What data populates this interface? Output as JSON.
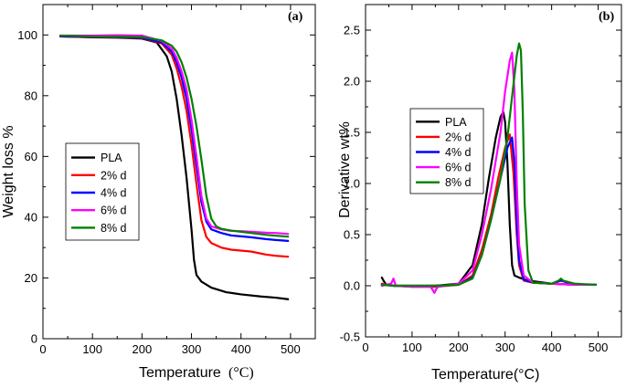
{
  "chart_data": [
    {
      "type": "line",
      "panel_label": "(a)",
      "title": "",
      "xlabel": "Temperature",
      "xlabel_unit": "(°C)",
      "ylabel": "Weight loss %",
      "xlim": [
        0,
        550
      ],
      "ylim": [
        0,
        110
      ],
      "xticks": [
        0,
        100,
        200,
        300,
        400,
        500
      ],
      "yticks": [
        0,
        20,
        40,
        60,
        80,
        100
      ],
      "grid": false,
      "legend_position": "center-left",
      "series": [
        {
          "name": "PLA",
          "color": "#000000",
          "x": [
            35,
            100,
            150,
            200,
            230,
            250,
            260,
            270,
            280,
            290,
            300,
            305,
            310,
            320,
            340,
            370,
            400,
            440,
            470,
            495
          ],
          "y": [
            99.5,
            99.2,
            99.1,
            98.8,
            97.5,
            93,
            88,
            79,
            67,
            53,
            36,
            26,
            21,
            18.8,
            16.8,
            15.3,
            14.6,
            13.9,
            13.5,
            13
          ]
        },
        {
          "name": "2% d",
          "color": "#ff0000",
          "x": [
            35,
            100,
            150,
            200,
            240,
            260,
            270,
            280,
            290,
            300,
            310,
            320,
            330,
            340,
            360,
            380,
            400,
            420,
            450,
            470,
            495
          ],
          "y": [
            99.5,
            99.3,
            99.2,
            99,
            97.2,
            93.5,
            89,
            83,
            75,
            64,
            51,
            39,
            33.5,
            31.5,
            30,
            29.3,
            29,
            28.7,
            27.7,
            27.3,
            27
          ]
        },
        {
          "name": "4% d",
          "color": "#0000ff",
          "x": [
            35,
            100,
            150,
            200,
            240,
            260,
            270,
            280,
            290,
            300,
            310,
            320,
            330,
            340,
            360,
            380,
            400,
            420,
            450,
            470,
            495
          ],
          "y": [
            99.6,
            99.4,
            99.3,
            99.1,
            97.5,
            94.5,
            91,
            86,
            79,
            69,
            57,
            45,
            38.5,
            36,
            34.8,
            34,
            33.7,
            33.4,
            32.8,
            32.5,
            32.2
          ]
        },
        {
          "name": "6% d",
          "color": "#ff00ff",
          "x": [
            35,
            100,
            150,
            200,
            240,
            260,
            270,
            280,
            290,
            300,
            310,
            320,
            330,
            340,
            360,
            380,
            400,
            420,
            450,
            470,
            495
          ],
          "y": [
            99.8,
            99.8,
            99.9,
            99.8,
            98,
            95.5,
            92.5,
            88,
            82,
            72,
            60,
            47,
            39.5,
            37,
            36,
            35.5,
            35.4,
            35.2,
            34.9,
            34.8,
            34.5
          ]
        },
        {
          "name": "8% d",
          "color": "#008000",
          "x": [
            35,
            100,
            150,
            200,
            240,
            260,
            270,
            280,
            290,
            300,
            310,
            320,
            330,
            340,
            350,
            360,
            380,
            400,
            420,
            450,
            470,
            495
          ],
          "y": [
            99.8,
            99.5,
            99.4,
            99.3,
            98.2,
            96.5,
            94.5,
            91,
            86,
            79,
            70,
            59,
            47,
            39.5,
            37,
            36.2,
            35.6,
            35.2,
            34.8,
            34.2,
            33.9,
            33.6
          ]
        }
      ]
    },
    {
      "type": "line",
      "panel_label": "(b)",
      "title": "",
      "xlabel": "Temperature",
      "xlabel_unit": "(°C)",
      "ylabel": "Derivative wt%",
      "xlim": [
        0,
        550
      ],
      "ylim": [
        -0.5,
        2.75
      ],
      "xticks": [
        0,
        100,
        200,
        300,
        400,
        500
      ],
      "yticks": [
        -0.5,
        0.0,
        0.5,
        1.0,
        1.5,
        2.0,
        2.5
      ],
      "grid": false,
      "legend_position": "top-left",
      "series": [
        {
          "name": "PLA",
          "color": "#000000",
          "x": [
            35,
            40,
            45,
            60,
            100,
            150,
            200,
            230,
            250,
            265,
            280,
            290,
            296,
            300,
            305,
            310,
            315,
            320,
            330,
            350,
            400,
            450,
            495
          ],
          "y": [
            0.08,
            0.04,
            0.01,
            0.0,
            0.0,
            0.0,
            0.02,
            0.2,
            0.6,
            1.05,
            1.45,
            1.65,
            1.7,
            1.6,
            1.2,
            0.6,
            0.2,
            0.1,
            0.08,
            0.05,
            0.02,
            0.01,
            0.01
          ]
        },
        {
          "name": "2% d",
          "color": "#ff0000",
          "x": [
            35,
            60,
            100,
            150,
            200,
            230,
            250,
            270,
            285,
            300,
            310,
            318,
            325,
            330,
            340,
            360,
            400,
            450,
            495
          ],
          "y": [
            0.02,
            0.0,
            -0.01,
            -0.01,
            0.01,
            0.1,
            0.35,
            0.7,
            1.05,
            1.35,
            1.48,
            1.1,
            0.5,
            0.2,
            0.05,
            0.03,
            0.02,
            0.01,
            0.01
          ]
        },
        {
          "name": "4% d",
          "color": "#0000ff",
          "x": [
            35,
            60,
            100,
            150,
            200,
            230,
            250,
            270,
            290,
            305,
            315,
            320,
            325,
            330,
            340,
            360,
            400,
            420,
            450,
            495
          ],
          "y": [
            0.01,
            0.0,
            0.0,
            0.0,
            0.01,
            0.08,
            0.3,
            0.65,
            1.05,
            1.35,
            1.45,
            1.2,
            0.6,
            0.25,
            0.06,
            0.03,
            0.02,
            0.05,
            0.01,
            0.01
          ]
        },
        {
          "name": "6% d",
          "color": "#ff00ff",
          "x": [
            35,
            55,
            60,
            65,
            100,
            140,
            148,
            150,
            155,
            200,
            230,
            250,
            270,
            290,
            300,
            310,
            315,
            320,
            325,
            330,
            340,
            360,
            400,
            450,
            495
          ],
          "y": [
            0.0,
            0.02,
            0.07,
            0.0,
            -0.01,
            -0.01,
            -0.07,
            -0.05,
            -0.01,
            0.02,
            0.15,
            0.5,
            0.95,
            1.5,
            1.9,
            2.2,
            2.28,
            1.9,
            1.0,
            0.4,
            0.1,
            0.03,
            0.02,
            0.01,
            0.01
          ]
        },
        {
          "name": "8% d",
          "color": "#008000",
          "x": [
            35,
            60,
            100,
            150,
            200,
            230,
            250,
            270,
            290,
            305,
            315,
            325,
            330,
            334,
            338,
            342,
            350,
            360,
            400,
            415,
            420,
            425,
            450,
            495
          ],
          "y": [
            0.01,
            0.0,
            0.0,
            0.0,
            0.01,
            0.07,
            0.3,
            0.65,
            1.05,
            1.45,
            1.85,
            2.25,
            2.37,
            2.3,
            1.7,
            0.8,
            0.15,
            0.03,
            0.02,
            0.05,
            0.07,
            0.05,
            0.02,
            0.01
          ]
        }
      ]
    }
  ]
}
